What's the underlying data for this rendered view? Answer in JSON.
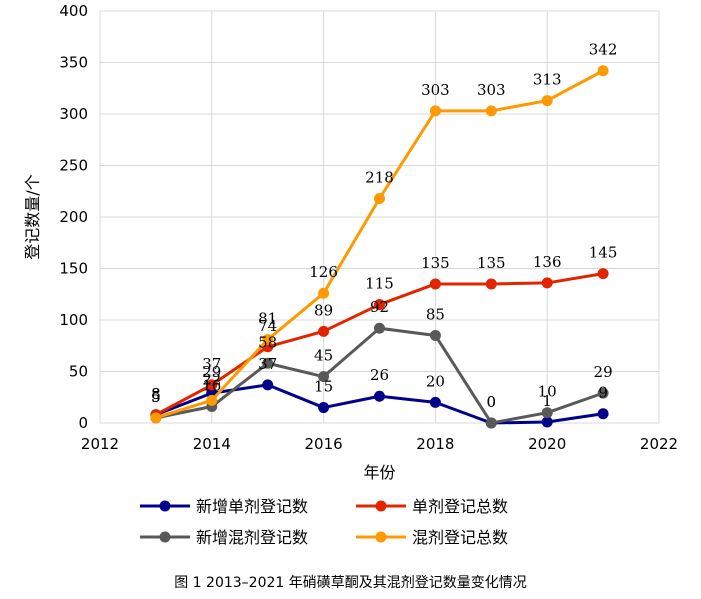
{
  "caption": "图 1  2013–2021 年硝磺草酮及其混剂登记数量变化情况",
  "chart_data": {
    "type": "line",
    "xlabel": "年份",
    "ylabel": "登记数量/个",
    "xlim": [
      2012,
      2022
    ],
    "ylim": [
      0,
      400
    ],
    "xticks": [
      2012,
      2014,
      2016,
      2018,
      2020,
      2022
    ],
    "yticks": [
      0,
      50,
      100,
      150,
      200,
      250,
      300,
      350,
      400
    ],
    "grid": true,
    "legend_position": "bottom",
    "x": [
      2013,
      2014,
      2015,
      2016,
      2017,
      2018,
      2019,
      2020,
      2021
    ],
    "series": [
      {
        "name": "新增单剂登记数",
        "color": "#00008B",
        "values": [
          8,
          29,
          37,
          15,
          26,
          20,
          0,
          1,
          9
        ]
      },
      {
        "name": "单剂登记总数",
        "color": "#E32400",
        "values": [
          8,
          37,
          74,
          89,
          115,
          135,
          135,
          136,
          145
        ]
      },
      {
        "name": "新增混剂登记数",
        "color": "#595959",
        "values": [
          5,
          16,
          58,
          45,
          92,
          85,
          0,
          10,
          29
        ]
      },
      {
        "name": "混剂登记总数",
        "color": "#FF9900",
        "values": [
          5,
          22,
          81,
          126,
          218,
          303,
          303,
          313,
          342
        ]
      }
    ]
  }
}
